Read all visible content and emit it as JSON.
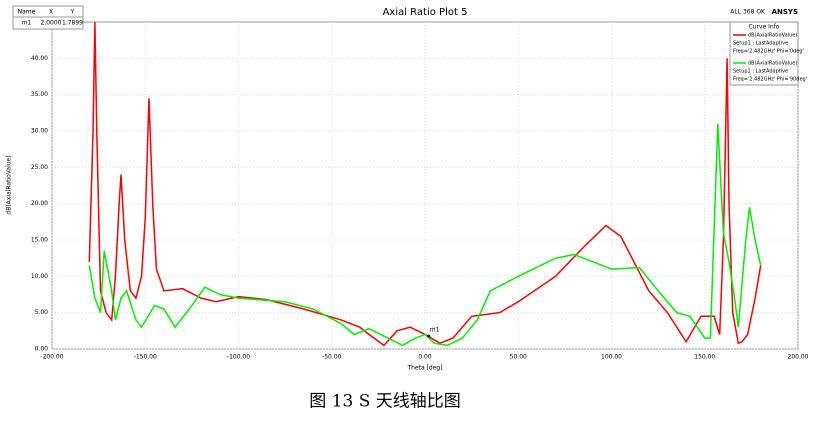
{
  "chart_data": {
    "type": "line",
    "title": "Axial Ratio Plot 5",
    "status": "ALL 368 OK",
    "brand": "ANSYS",
    "xlabel": "Theta [deg]",
    "ylabel": "dB(AxialRatioValue)",
    "xlim": [
      -200,
      200
    ],
    "ylim": [
      0,
      45
    ],
    "xticks": [
      {
        "value": -200,
        "label": "-200.00"
      },
      {
        "value": -150,
        "label": "-150.00"
      },
      {
        "value": -100,
        "label": "-100.00"
      },
      {
        "value": -50,
        "label": "-50.00"
      },
      {
        "value": 0,
        "label": "0.00"
      },
      {
        "value": 50,
        "label": "50.00"
      },
      {
        "value": 100,
        "label": "100.00"
      },
      {
        "value": 150,
        "label": "150.00"
      },
      {
        "value": 200,
        "label": "200.00"
      }
    ],
    "yticks": [
      {
        "value": 0,
        "label": "0.00"
      },
      {
        "value": 5,
        "label": "5.00"
      },
      {
        "value": 10,
        "label": "10.00"
      },
      {
        "value": 15,
        "label": "15.00"
      },
      {
        "value": 20,
        "label": "20.00"
      },
      {
        "value": 25,
        "label": "25.00"
      },
      {
        "value": 30,
        "label": "30.00"
      },
      {
        "value": 35,
        "label": "35.00"
      },
      {
        "value": 40,
        "label": "40.00"
      }
    ],
    "legend_title": "Curve Info",
    "series": [
      {
        "name": "dB(AxialRatioValue)",
        "setup": "Setup1 : LastAdaptive",
        "params": "Freq='2.482GHz' Phi='0deg'",
        "color": "#ff0000",
        "x": [
          -180,
          -178,
          -177,
          -176,
          -174,
          -171,
          -168,
          -166,
          -164,
          -163,
          -161,
          -158,
          -155,
          -152,
          -150,
          -148,
          -146,
          -144,
          -140,
          -130,
          -120,
          -112,
          -100,
          -85,
          -65,
          -45,
          -35,
          -30,
          -22,
          -15,
          -8,
          0,
          8,
          15,
          25,
          40,
          50,
          70,
          85,
          97,
          105,
          120,
          130,
          140,
          148,
          155,
          158,
          160,
          162,
          163,
          165,
          168,
          170,
          173,
          177,
          180
        ],
        "values": [
          12,
          30,
          45,
          30,
          8,
          5,
          4,
          10,
          20,
          24,
          15,
          8,
          7,
          10,
          18,
          34.5,
          20,
          11,
          8,
          8.3,
          7,
          6.5,
          7.2,
          6.8,
          5.5,
          4,
          3,
          2,
          0.5,
          2.5,
          3,
          2,
          0.8,
          1.5,
          4.5,
          5,
          6.5,
          10,
          14,
          17,
          15.5,
          8,
          5,
          1,
          4.5,
          4.5,
          2,
          15,
          40,
          20,
          5,
          0.8,
          1,
          2,
          7,
          11.5
        ]
      },
      {
        "name": "dB(AxialRatioValue)",
        "setup": "Setup1 : LastAdaptive",
        "params": "Freq='2.482GHz' Phi='90deg'",
        "color": "#00ee00",
        "x": [
          -180,
          -177,
          -174,
          -172,
          -168,
          -166,
          -163,
          -160,
          -155,
          -152,
          -145,
          -140,
          -134,
          -125,
          -118,
          -110,
          -100,
          -90,
          -75,
          -60,
          -45,
          -38,
          -30,
          -20,
          -12,
          -5,
          0,
          5,
          12,
          20,
          28,
          35,
          50,
          70,
          80,
          90,
          100,
          115,
          125,
          135,
          142,
          150,
          153,
          157,
          160,
          163,
          166,
          168,
          172,
          174,
          177,
          180
        ],
        "values": [
          11.5,
          7,
          5,
          13.5,
          8,
          4,
          7,
          8,
          4,
          3,
          6,
          5.5,
          3,
          6,
          8.5,
          7.5,
          7,
          6.8,
          6.5,
          5.5,
          3.5,
          2,
          2.8,
          1.5,
          0.5,
          1.5,
          2,
          0.8,
          0.5,
          1.5,
          4,
          8,
          10,
          12.5,
          13,
          12,
          11,
          11.2,
          8,
          5,
          4.5,
          1.5,
          1.5,
          31,
          16,
          12,
          7,
          3,
          15,
          19.5,
          15,
          11.5
        ]
      }
    ],
    "marker_table": {
      "columns": [
        "Name",
        "X",
        "Y"
      ],
      "markers": [
        {
          "name": "m1",
          "x": 2,
          "y": 1.7899,
          "x_label": "2.0000",
          "y_label": "1.7899"
        }
      ]
    }
  },
  "caption": "图 13 S 天线轴比图"
}
